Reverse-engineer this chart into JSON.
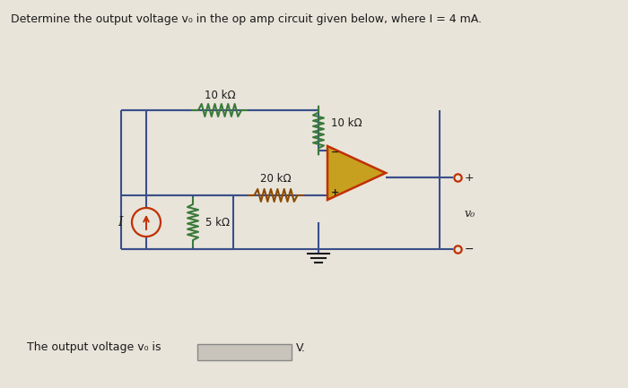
{
  "title": "Determine the output voltage v₀ in the op amp circuit given below, where I = 4 mA.",
  "bg_color": "#e8e4da",
  "wire_color": "#3a4f8a",
  "resistor_color_top10k": "#3a7a3a",
  "resistor_color_right10k": "#3a7a3a",
  "resistor_color_20k": "#8b4a00",
  "resistor_color_5k": "#3a7a3a",
  "opamp_fill": "#c8a020",
  "opamp_outline": "#c03000",
  "current_source_fill": "#c03000",
  "current_source_edge": "#c03000",
  "text_color": "#1a1a1a",
  "answer_box_color": "#c8c4bc",
  "answer_box_edge": "#888888",
  "terminal_color": "#c03000",
  "footer_text": "The output voltage v₀ is",
  "res_10k_top_label": "10 kΩ",
  "res_10k_right_label": "10 kΩ",
  "res_20k_label": "20 kΩ",
  "res_5k_label": "5 kΩ",
  "current_label": "I",
  "plus_label": "+",
  "minus_label": "−",
  "vo_label": "v₀",
  "v_unit": "V.",
  "opamp_minus_label": "−",
  "opamp_plus_label": "+"
}
